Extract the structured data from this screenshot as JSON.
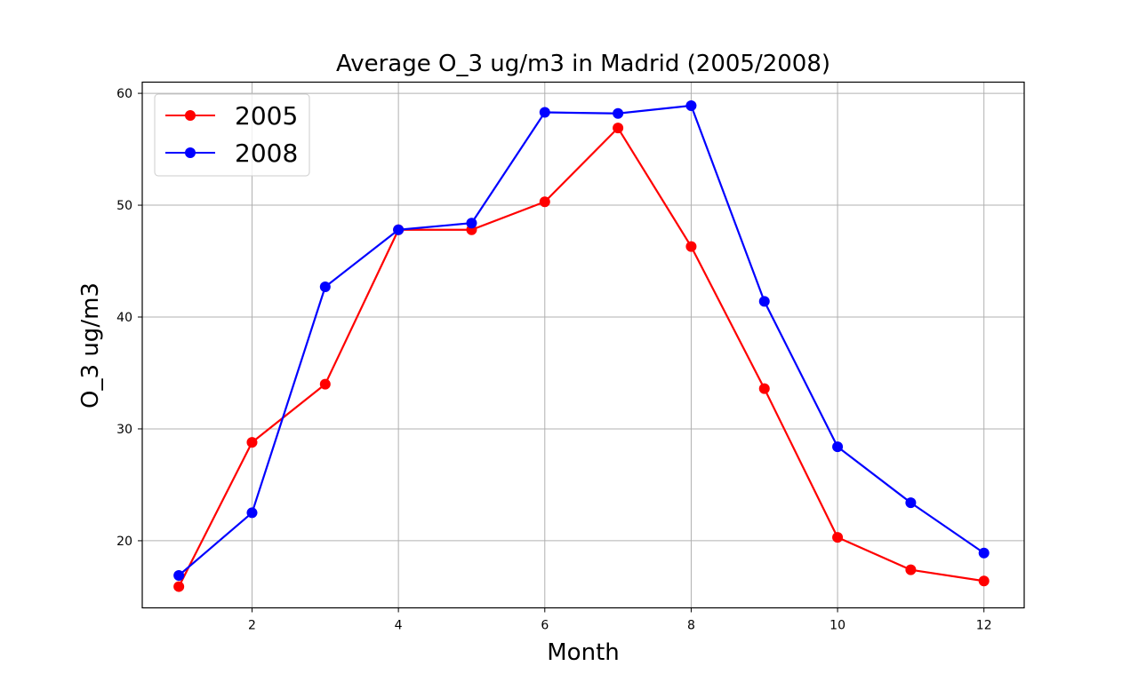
{
  "chart_data": {
    "type": "line",
    "title": "Average O_3 ug/m3 in Madrid (2005/2008)",
    "xlabel": "Month",
    "ylabel": "O_3 ug/m3",
    "xlim": [
      0.5,
      12.55
    ],
    "ylim": [
      14,
      61
    ],
    "xticks": [
      2,
      4,
      6,
      8,
      10,
      12
    ],
    "yticks": [
      20,
      30,
      40,
      50,
      60
    ],
    "grid": true,
    "legend_position": "upper-left",
    "x": [
      1,
      2,
      3,
      4,
      5,
      6,
      7,
      8,
      9,
      10,
      11,
      12
    ],
    "series": [
      {
        "name": "2005",
        "color": "#ff0000",
        "values": [
          15.9,
          28.8,
          34.0,
          47.8,
          47.8,
          50.3,
          56.9,
          46.3,
          33.6,
          20.3,
          17.4,
          16.4
        ]
      },
      {
        "name": "2008",
        "color": "#0000ff",
        "values": [
          16.9,
          22.5,
          42.7,
          47.8,
          48.4,
          58.3,
          58.2,
          58.9,
          41.4,
          28.4,
          23.4,
          18.9
        ]
      }
    ]
  }
}
